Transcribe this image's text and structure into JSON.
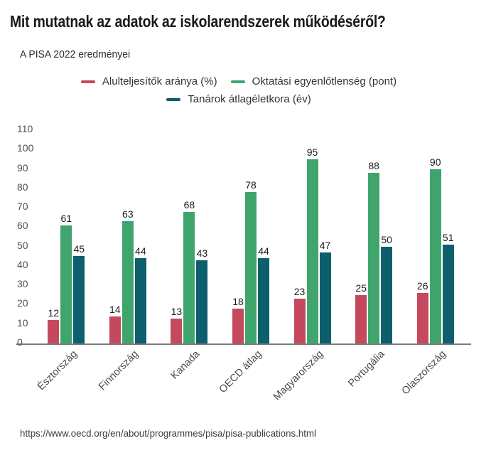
{
  "chart_data": {
    "type": "bar",
    "title": "Mit mutatnak az adatok az iskolarendszerek működéséről?",
    "subtitle": "A PISA 2022 eredményei",
    "categories": [
      "Észtország",
      "Finnország",
      "Kanada",
      "OECD átlag",
      "Magyarország",
      "Portugália",
      "Olaszország"
    ],
    "series": [
      {
        "name": "Alulteljesítők aránya (%)",
        "color": "#c5495d",
        "values": [
          12,
          14,
          13,
          18,
          23,
          25,
          26
        ]
      },
      {
        "name": "Oktatási egyenlőtlenség (pont)",
        "color": "#3fa56d",
        "values": [
          61,
          63,
          68,
          78,
          95,
          88,
          90
        ]
      },
      {
        "name": "Tanárok átlagéletkora (év)",
        "color": "#0d5f6e",
        "values": [
          45,
          44,
          43,
          44,
          47,
          50,
          51
        ]
      }
    ],
    "yticks": [
      0,
      10,
      20,
      30,
      40,
      50,
      60,
      70,
      80,
      90,
      100,
      110
    ],
    "ylim": [
      0,
      110
    ],
    "grid": false,
    "bar_value_labels": true,
    "legend_position": "top-center-two-rows",
    "axis_line_color": "#7b7b7b",
    "source": "https://www.oecd.org/en/about/programmes/pisa/pisa-publications.html"
  }
}
